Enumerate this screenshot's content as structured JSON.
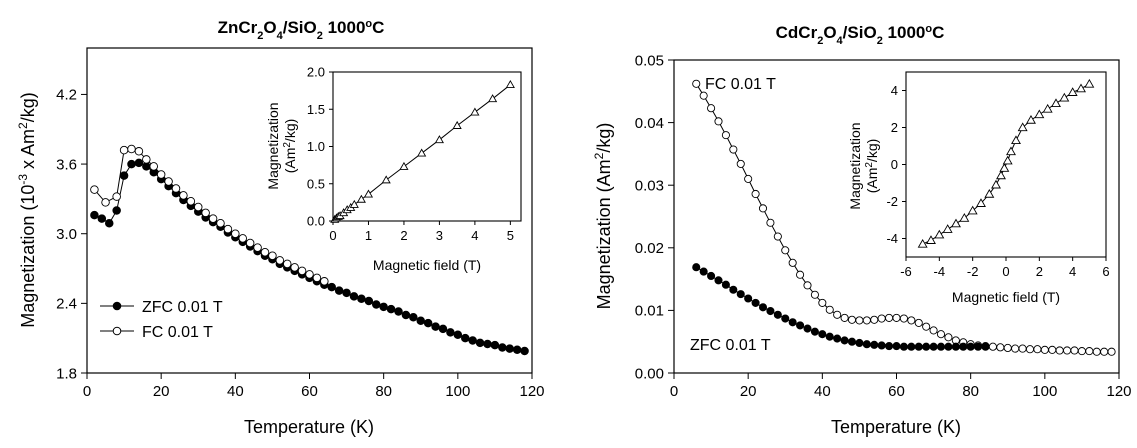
{
  "chart_data": [
    {
      "type": "scatter",
      "title": "ZnCr2O4/SiO2 1000°C",
      "title_parts": {
        "a": "ZnCr",
        "b": "2",
        "c": "O",
        "d": "4",
        "e": "/SiO",
        "f": "2",
        "g": " 1000",
        "h": "o",
        "i": "C"
      },
      "xlabel": "Temperature (K)",
      "ylabel": "Magnetization (10-3 x Am2/kg)",
      "ylabel_parts": {
        "a": "Magnetization (10",
        "b": "-3",
        "c": " x Am",
        "d": "2",
        "e": "/kg)"
      },
      "xlim": [
        0,
        120
      ],
      "ylim": [
        1.8,
        4.6
      ],
      "xticks": [
        "0",
        "20",
        "40",
        "60",
        "80",
        "100",
        "120"
      ],
      "yticks": [
        "1.8",
        "2.4",
        "3.0",
        "3.6",
        "4.2"
      ],
      "legend": "bottom-left",
      "series": [
        {
          "name": "ZFC 0.01 T",
          "marker": "filled-circle",
          "x": [
            2,
            4,
            6,
            8,
            10,
            12,
            14,
            16,
            18,
            20,
            22,
            24,
            26,
            28,
            30,
            32,
            34,
            36,
            38,
            40,
            42,
            44,
            46,
            48,
            50,
            52,
            54,
            56,
            58,
            60,
            62,
            64,
            66,
            68,
            70,
            72,
            74,
            76,
            78,
            80,
            82,
            84,
            86,
            88,
            90,
            92,
            94,
            96,
            98,
            100,
            102,
            104,
            106,
            108,
            110,
            112,
            114,
            116,
            118
          ],
          "y": [
            3.16,
            3.13,
            3.09,
            3.2,
            3.5,
            3.6,
            3.61,
            3.58,
            3.53,
            3.47,
            3.41,
            3.35,
            3.29,
            3.24,
            3.19,
            3.14,
            3.1,
            3.06,
            3.01,
            2.97,
            2.93,
            2.89,
            2.85,
            2.81,
            2.78,
            2.74,
            2.71,
            2.68,
            2.65,
            2.62,
            2.59,
            2.56,
            2.54,
            2.51,
            2.49,
            2.46,
            2.44,
            2.42,
            2.39,
            2.37,
            2.35,
            2.33,
            2.3,
            2.28,
            2.25,
            2.23,
            2.2,
            2.18,
            2.15,
            2.13,
            2.1,
            2.08,
            2.06,
            2.05,
            2.04,
            2.02,
            2.01,
            2.0,
            1.99
          ]
        },
        {
          "name": "FC 0.01 T",
          "marker": "open-circle",
          "x": [
            2,
            5,
            8,
            10,
            12,
            14,
            16,
            18,
            20,
            22,
            24,
            26,
            28,
            30,
            32,
            34,
            36,
            38,
            40,
            42,
            44,
            46,
            48,
            50,
            52,
            54,
            56,
            58,
            60,
            62,
            64
          ],
          "y": [
            3.38,
            3.27,
            3.32,
            3.72,
            3.73,
            3.71,
            3.64,
            3.58,
            3.51,
            3.45,
            3.39,
            3.33,
            3.28,
            3.23,
            3.18,
            3.13,
            3.09,
            3.04,
            3.0,
            2.96,
            2.92,
            2.88,
            2.84,
            2.81,
            2.77,
            2.74,
            2.71,
            2.68,
            2.65,
            2.62,
            2.59
          ]
        }
      ],
      "inset": {
        "type": "scatter",
        "xlabel": "Magnetic field (T)",
        "ylabel_line1": "Magnetization",
        "ylabel_line2_parts": {
          "a": "(Am",
          "b": "2",
          "c": "/kg)"
        },
        "xlim": [
          0,
          5.3
        ],
        "ylim": [
          0,
          2.0
        ],
        "xticks": [
          "0",
          "1",
          "2",
          "3",
          "4",
          "5"
        ],
        "yticks": [
          "0.0",
          "0.5",
          "1.0",
          "1.5",
          "2.0"
        ],
        "series": [
          {
            "marker": "open-triangle",
            "x": [
              0.05,
              0.1,
              0.15,
              0.2,
              0.3,
              0.4,
              0.5,
              0.6,
              0.8,
              1.0,
              1.5,
              2.0,
              2.5,
              3.0,
              3.5,
              4.0,
              4.5,
              5.0
            ],
            "y": [
              0.02,
              0.04,
              0.06,
              0.07,
              0.11,
              0.15,
              0.18,
              0.22,
              0.29,
              0.36,
              0.55,
              0.73,
              0.91,
              1.09,
              1.28,
              1.46,
              1.64,
              1.83
            ]
          }
        ]
      }
    },
    {
      "type": "scatter",
      "title": "CdCr2O4/SiO2 1000°C",
      "title_parts": {
        "a": "CdCr",
        "b": "2",
        "c": "O",
        "d": "4",
        "e": "/SiO",
        "f": "2",
        "g": " 1000",
        "h": "o",
        "i": "C"
      },
      "xlabel": "Temperature (K)",
      "ylabel": "Magnetization (Am2/kg)",
      "ylabel_parts": {
        "a": "Magnetization (Am",
        "b": "2",
        "c": "/kg)"
      },
      "xlim": [
        0,
        120
      ],
      "ylim": [
        0,
        0.05
      ],
      "xticks": [
        "0",
        "20",
        "40",
        "60",
        "80",
        "100",
        "120"
      ],
      "yticks": [
        "0.00",
        "0.01",
        "0.02",
        "0.03",
        "0.04",
        "0.05"
      ],
      "series": [
        {
          "name": "FC 0.01 T",
          "marker": "open-circle",
          "x": [
            6,
            8,
            10,
            12,
            14,
            16,
            18,
            20,
            22,
            24,
            26,
            28,
            30,
            32,
            34,
            36,
            38,
            40,
            42,
            44,
            46,
            48,
            50,
            52,
            54,
            56,
            58,
            60,
            62,
            64,
            66,
            68,
            70,
            72,
            74,
            76,
            78,
            80,
            82,
            84,
            86,
            88,
            90,
            92,
            94,
            96,
            98,
            100,
            102,
            104,
            106,
            108,
            110,
            112,
            114,
            116,
            118
          ],
          "y": [
            0.0462,
            0.0443,
            0.0423,
            0.0402,
            0.038,
            0.0357,
            0.0334,
            0.031,
            0.0286,
            0.0263,
            0.024,
            0.0218,
            0.0196,
            0.0176,
            0.0157,
            0.014,
            0.0125,
            0.0112,
            0.0101,
            0.0093,
            0.0088,
            0.0085,
            0.0084,
            0.0084,
            0.0085,
            0.0087,
            0.0088,
            0.0088,
            0.0087,
            0.0084,
            0.008,
            0.0074,
            0.0068,
            0.0062,
            0.0057,
            0.0052,
            0.0049,
            0.0046,
            0.0044,
            0.0043,
            0.0042,
            0.0041,
            0.004,
            0.0039,
            0.0039,
            0.0038,
            0.0038,
            0.0037,
            0.0037,
            0.0036,
            0.0036,
            0.0036,
            0.0035,
            0.0035,
            0.0034,
            0.0034,
            0.0034
          ]
        },
        {
          "name": "ZFC 0.01 T",
          "marker": "filled-circle",
          "x": [
            6,
            8,
            10,
            12,
            14,
            16,
            18,
            20,
            22,
            24,
            26,
            28,
            30,
            32,
            34,
            36,
            38,
            40,
            42,
            44,
            46,
            48,
            50,
            52,
            54,
            56,
            58,
            60,
            62,
            64,
            66,
            68,
            70,
            72,
            74,
            76,
            78,
            80,
            82,
            84
          ],
          "y": [
            0.0169,
            0.0162,
            0.0155,
            0.0148,
            0.0141,
            0.0133,
            0.0126,
            0.0119,
            0.0112,
            0.0105,
            0.0099,
            0.0093,
            0.0087,
            0.0081,
            0.0076,
            0.0071,
            0.0066,
            0.0062,
            0.0058,
            0.0055,
            0.0052,
            0.005,
            0.0048,
            0.0046,
            0.0045,
            0.0044,
            0.0043,
            0.0043,
            0.0042,
            0.0042,
            0.0042,
            0.0042,
            0.0042,
            0.0042,
            0.0042,
            0.0042,
            0.0042,
            0.0042,
            0.0042,
            0.0042
          ]
        }
      ],
      "inset": {
        "type": "scatter",
        "xlabel": "Magnetic field (T)",
        "ylabel_line1": "Magnetization",
        "ylabel_line2_parts": {
          "a": "(Am",
          "b": "2",
          "c": "/kg)"
        },
        "xlim": [
          -6,
          6
        ],
        "ylim": [
          -5,
          5
        ],
        "xticks": [
          "-6",
          "-4",
          "-2",
          "0",
          "2",
          "4",
          "6"
        ],
        "yticks": [
          "-4",
          "-2",
          "0",
          "2",
          "4"
        ],
        "series": [
          {
            "marker": "open-triangle",
            "x": [
              -5.0,
              -4.5,
              -4.0,
              -3.5,
              -3.0,
              -2.5,
              -2.0,
              -1.5,
              -1.0,
              -0.6,
              -0.3,
              -0.1,
              0.1,
              0.3,
              0.6,
              1.0,
              1.5,
              2.0,
              2.5,
              3.0,
              3.5,
              4.0,
              4.5,
              5.0
            ],
            "y": [
              -4.3,
              -4.1,
              -3.8,
              -3.5,
              -3.2,
              -2.9,
              -2.5,
              -2.1,
              -1.6,
              -1.1,
              -0.6,
              -0.2,
              0.2,
              0.7,
              1.3,
              2.0,
              2.4,
              2.7,
              3.0,
              3.3,
              3.6,
              3.9,
              4.1,
              4.35
            ]
          }
        ]
      }
    }
  ]
}
